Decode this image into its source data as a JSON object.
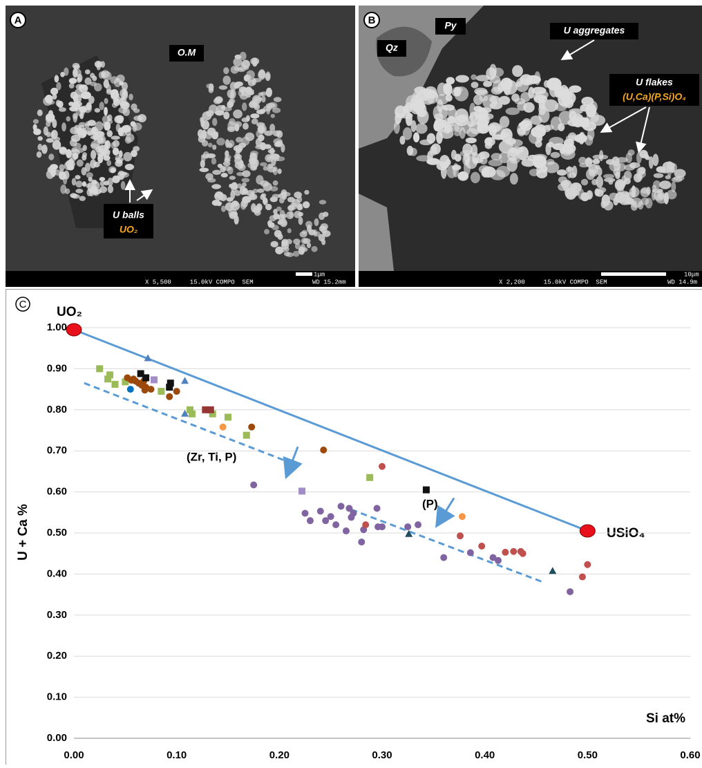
{
  "panels": {
    "a": {
      "label": "A",
      "om": "O.M",
      "balls": "U balls",
      "formula": "UO₂",
      "info": "X 5,500     15.0kV COMPO  SEM",
      "wd": "WD 15.2mm",
      "scale": "1μm"
    },
    "b": {
      "label": "B",
      "py": "Py",
      "qz": "Qz",
      "aggregates": "U aggregates",
      "flakes": "U flakes",
      "formula": "(U,Ca)(P,Si)O₄",
      "info": "X 2,200     15.0kV COMPO  SEM",
      "wd": "WD 14.9m",
      "scale": "10μm"
    }
  },
  "chart_data": {
    "type": "scatter",
    "label": "C",
    "xlabel": "Si at%",
    "ylabel": "U + Ca %",
    "annotations": [
      "UO₂",
      "USiO₄",
      "(Zr, Ti, P)",
      "(P)"
    ],
    "xlim": [
      0,
      0.6
    ],
    "ylim": [
      0,
      1.05
    ],
    "xticks": [
      {
        "value": 0,
        "label": "0.00"
      },
      {
        "value": 0.1,
        "label": "0.10"
      },
      {
        "value": 0.2,
        "label": "0.20"
      },
      {
        "value": 0.3,
        "label": "0.30"
      },
      {
        "value": 0.4,
        "label": "0.40"
      },
      {
        "value": 0.5,
        "label": "0.50"
      },
      {
        "value": 0.6,
        "label": "0.60"
      }
    ],
    "yticks": [
      {
        "value": 0,
        "label": "0.00"
      },
      {
        "value": 0.1,
        "label": "0.10"
      },
      {
        "value": 0.2,
        "label": "0.20"
      },
      {
        "value": 0.3,
        "label": "0.30"
      },
      {
        "value": 0.4,
        "label": "0.40"
      },
      {
        "value": 0.5,
        "label": "0.50"
      },
      {
        "value": 0.6,
        "label": "0.60"
      },
      {
        "value": 0.7,
        "label": "0.70"
      },
      {
        "value": 0.8,
        "label": "0.80"
      },
      {
        "value": 0.9,
        "label": "0.90"
      },
      {
        "value": 1.0,
        "label": "1.00"
      }
    ],
    "grid": true,
    "lines": [
      {
        "color": "#5b9bd5",
        "dashed": false,
        "end_color": "#e8101a",
        "x": [
          0,
          0.5
        ],
        "values": [
          0.995,
          0.505
        ]
      },
      {
        "color": "#5b9bd5",
        "dashed": true,
        "x": [
          0.01,
          0.21
        ],
        "values": [
          0.865,
          0.672
        ]
      },
      {
        "color": "#5b9bd5",
        "dashed": true,
        "x": [
          0.27,
          0.457
        ],
        "values": [
          0.557,
          0.38
        ]
      }
    ],
    "arrows": [
      {
        "color": "#5b9bd5",
        "x": [
          0.218,
          0.208
        ],
        "values": [
          0.71,
          0.645
        ]
      },
      {
        "color": "#5b9bd5",
        "x": [
          0.37,
          0.355
        ],
        "values": [
          0.585,
          0.525
        ]
      }
    ],
    "series": [
      {
        "color": "#9bbb59",
        "marker": "square",
        "x": [
          0.025,
          0.033,
          0.035,
          0.04,
          0.05,
          0.085,
          0.113,
          0.115,
          0.135,
          0.15,
          0.168,
          0.288
        ],
        "values": [
          0.9,
          0.875,
          0.885,
          0.862,
          0.868,
          0.845,
          0.8,
          0.79,
          0.79,
          0.782,
          0.738,
          0.635
        ]
      },
      {
        "color": "#9c4a0c",
        "marker": "circle",
        "x": [
          0.052,
          0.056,
          0.058,
          0.06,
          0.063,
          0.066,
          0.068,
          0.069,
          0.07,
          0.075,
          0.093,
          0.1,
          0.173,
          0.243
        ],
        "values": [
          0.878,
          0.872,
          0.875,
          0.87,
          0.865,
          0.86,
          0.87,
          0.848,
          0.855,
          0.85,
          0.832,
          0.845,
          0.758,
          0.702
        ]
      },
      {
        "color": "#111111",
        "marker": "square",
        "x": [
          0.065,
          0.07,
          0.093,
          0.094,
          0.343
        ],
        "values": [
          0.888,
          0.878,
          0.855,
          0.865,
          0.605
        ]
      },
      {
        "color": "#4f81bd",
        "marker": "triangle",
        "x": [
          0.072,
          0.108,
          0.108
        ],
        "values": [
          0.925,
          0.87,
          0.79
        ]
      },
      {
        "color": "#0070c0",
        "marker": "circle",
        "x": [
          0.055
        ],
        "values": [
          0.85
        ]
      },
      {
        "color": "#a28dc9",
        "marker": "square",
        "x": [
          0.078,
          0.222
        ],
        "values": [
          0.873,
          0.602
        ]
      },
      {
        "color": "#953735",
        "marker": "square",
        "x": [
          0.128,
          0.133
        ],
        "values": [
          0.8,
          0.8
        ]
      },
      {
        "color": "#f79646",
        "marker": "circle",
        "x": [
          0.145,
          0.378
        ],
        "values": [
          0.758,
          0.54
        ]
      },
      {
        "color": "#8064a2",
        "marker": "circle",
        "x": [
          0.175,
          0.225,
          0.23,
          0.24,
          0.245,
          0.25,
          0.255,
          0.26,
          0.265,
          0.268,
          0.27,
          0.272,
          0.28,
          0.282,
          0.295,
          0.296,
          0.3,
          0.325,
          0.335,
          0.36,
          0.386,
          0.408,
          0.413,
          0.483
        ],
        "values": [
          0.617,
          0.548,
          0.53,
          0.553,
          0.53,
          0.54,
          0.52,
          0.565,
          0.505,
          0.56,
          0.538,
          0.548,
          0.478,
          0.508,
          0.56,
          0.515,
          0.515,
          0.515,
          0.52,
          0.44,
          0.452,
          0.44,
          0.433,
          0.357
        ]
      },
      {
        "color": "#c0504d",
        "marker": "circle",
        "x": [
          0.284,
          0.3,
          0.376,
          0.397,
          0.42,
          0.428,
          0.435,
          0.437,
          0.495,
          0.5
        ],
        "values": [
          0.52,
          0.662,
          0.493,
          0.468,
          0.453,
          0.455,
          0.455,
          0.45,
          0.393,
          0.423
        ]
      },
      {
        "color": "#1f4e5f",
        "marker": "triangle",
        "x": [
          0.326,
          0.466
        ],
        "values": [
          0.497,
          0.407
        ]
      }
    ]
  }
}
